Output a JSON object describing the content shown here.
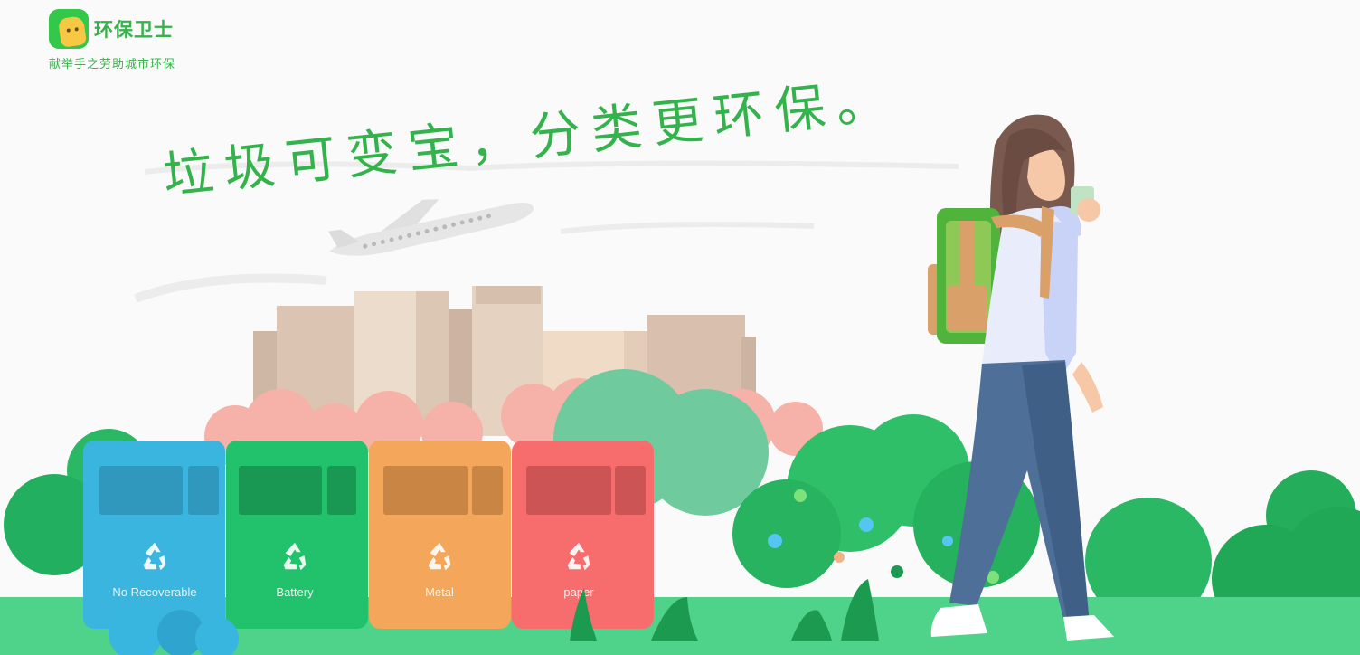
{
  "brand": {
    "name": "环保卫士",
    "tagline": "献举手之劳助城市环保",
    "logo_icon": "mascot-logo-icon",
    "color": "#36b24a"
  },
  "hero": {
    "slogan": "垃圾可变宝，分类更环保。",
    "slogan_color": "#34b34c"
  },
  "bins": [
    {
      "label": "No Recoverable",
      "color": "#39b5df",
      "icon": "recycle-icon"
    },
    {
      "label": "Battery",
      "color": "#22c16b",
      "icon": "recycle-icon"
    },
    {
      "label": "Metal",
      "color": "#f4a65a",
      "icon": "recycle-icon"
    },
    {
      "label": "paper",
      "color": "#f76d6d",
      "icon": "recycle-icon"
    }
  ],
  "illustration": {
    "airplane": "airplane-icon",
    "buildings": "city-buildings",
    "person": "walking-girl-with-backpack"
  }
}
